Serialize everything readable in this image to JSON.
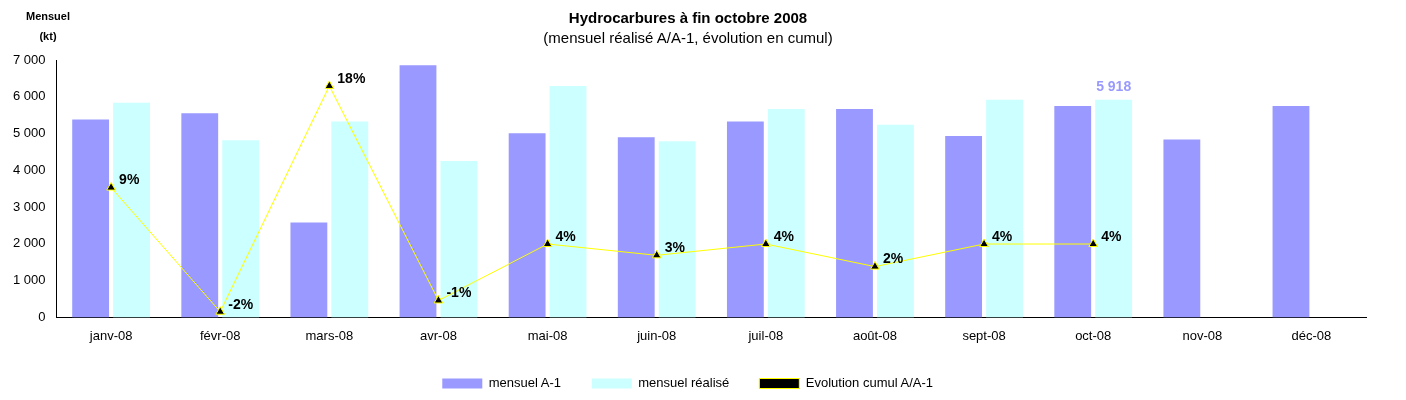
{
  "chart_data": {
    "type": "bar",
    "title": "Hydrocarbures à fin octobre 2008",
    "subtitle": "(mensuel réalisé A/A-1, évolution en cumul)",
    "ylabel": "Mensuel (kt)",
    "categories": [
      "janv-08",
      "févr-08",
      "mars-08",
      "avr-08",
      "mai-08",
      "juin-08",
      "juil-08",
      "août-08",
      "sept-08",
      "oct-08",
      "nov-08",
      "déc-08"
    ],
    "series": [
      {
        "name": "mensuel A-1",
        "color": "#9999ff",
        "values": [
          5380,
          5550,
          2580,
          6860,
          5010,
          4900,
          5330,
          5670,
          4930,
          5750,
          4840,
          5750
        ]
      },
      {
        "name": "mensuel réalisé",
        "color": "#ccffff",
        "values": [
          5840,
          4820,
          5330,
          4250,
          6290,
          4790,
          5670,
          5240,
          5920,
          5918,
          null,
          null
        ],
        "value_labels": [
          null,
          null,
          null,
          null,
          null,
          null,
          null,
          null,
          null,
          "5 918",
          null,
          null
        ]
      },
      {
        "name": "Evolution cumul A/A-1",
        "type": "line",
        "axis": "y2",
        "color": "#ffff00",
        "marker": "triangle",
        "values": [
          9,
          -2,
          18,
          -1,
          4,
          3,
          4,
          2,
          4,
          4,
          null,
          null
        ],
        "value_labels": [
          "9%",
          "-2%",
          "18%",
          "-1%",
          "4%",
          "3%",
          "4%",
          "2%",
          "4%",
          "4%",
          null,
          null
        ]
      }
    ],
    "ylim": [
      0,
      7000
    ],
    "yticks": [
      {
        "value": 0,
        "label": "0"
      },
      {
        "value": 1000,
        "label": "1 000"
      },
      {
        "value": 2000,
        "label": "2 000"
      },
      {
        "value": 3000,
        "label": "3 000"
      },
      {
        "value": 4000,
        "label": "4 000"
      },
      {
        "value": 5000,
        "label": "5 000"
      },
      {
        "value": 6000,
        "label": "6 000"
      },
      {
        "value": 7000,
        "label": "7 000"
      }
    ],
    "y2lim": [
      -2.5,
      20.3
    ],
    "tick_labels": "xy",
    "grid": false,
    "legend": "bottom"
  }
}
